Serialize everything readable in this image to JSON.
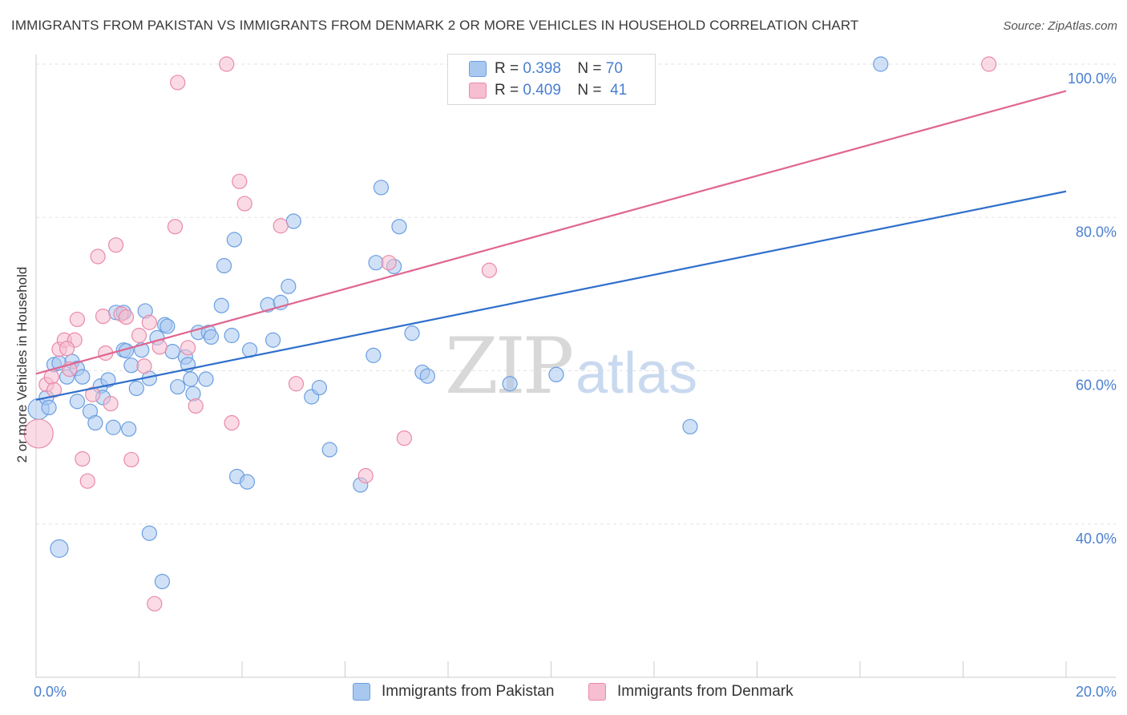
{
  "title": "IMMIGRANTS FROM PAKISTAN VS IMMIGRANTS FROM DENMARK 2 OR MORE VEHICLES IN HOUSEHOLD CORRELATION CHART",
  "source": "Source: ZipAtlas.com",
  "watermark": {
    "zip": "ZIP",
    "atlas": "atlas"
  },
  "colors": {
    "pakistan_fill": "#a9c8f0",
    "pakistan_stroke": "#6b9ee0",
    "pakistan_line": "#2f6fcc",
    "denmark_fill": "#f6bed0",
    "denmark_stroke": "#e98aa9",
    "denmark_line": "#e06690",
    "tick_text": "#4a7fd0",
    "grid": "#e3e3e3"
  },
  "legend": {
    "rows": [
      {
        "r_label": "R =",
        "r_value": "0.398",
        "n_label": "N =",
        "n_value": "70"
      },
      {
        "r_label": "R =",
        "r_value": "0.409",
        "n_label": "N =",
        "n_value": "41"
      }
    ]
  },
  "bottom_legend": [
    "Immigrants from Pakistan",
    "Immigrants from Denmark"
  ],
  "chart_data": {
    "type": "scatter",
    "title": "IMMIGRANTS FROM PAKISTAN VS IMMIGRANTS FROM DENMARK 2 OR MORE VEHICLES IN HOUSEHOLD CORRELATION CHART",
    "xlabel": "",
    "ylabel": "2 or more Vehicles in Household",
    "xlim": [
      0,
      20
    ],
    "ylim": [
      20,
      102
    ],
    "x_tick_labels": [
      {
        "value": 0,
        "label": "0.0%"
      },
      {
        "value": 20,
        "label": "20.0%"
      }
    ],
    "y_tick_labels": [
      {
        "value": 40,
        "label": "40.0%"
      },
      {
        "value": 60,
        "label": "60.0%"
      },
      {
        "value": 80,
        "label": "80.0%"
      },
      {
        "value": 100,
        "label": "100.0%"
      }
    ],
    "grid": true,
    "legend_position": "top-center",
    "series": [
      {
        "name": "Immigrants from Pakistan",
        "r": 0.398,
        "n": 70,
        "trend": {
          "x0": 0,
          "y0": 56.2,
          "x1": 20,
          "y1": 83.4
        },
        "points": [
          [
            0.05,
            55.0
          ],
          [
            0.2,
            56.5
          ],
          [
            0.25,
            55.2
          ],
          [
            0.35,
            60.8
          ],
          [
            0.45,
            61.0
          ],
          [
            0.6,
            59.2
          ],
          [
            0.7,
            61.2
          ],
          [
            0.8,
            60.3
          ],
          [
            0.8,
            56.0
          ],
          [
            0.9,
            59.2
          ],
          [
            1.05,
            54.7
          ],
          [
            1.15,
            53.2
          ],
          [
            1.25,
            58.0
          ],
          [
            1.3,
            56.5
          ],
          [
            1.4,
            58.8
          ],
          [
            1.5,
            52.6
          ],
          [
            1.55,
            67.6
          ],
          [
            1.7,
            67.6
          ],
          [
            1.7,
            62.7
          ],
          [
            1.75,
            62.6
          ],
          [
            1.8,
            52.4
          ],
          [
            1.85,
            60.7
          ],
          [
            1.95,
            57.7
          ],
          [
            2.05,
            62.7
          ],
          [
            2.12,
            67.8
          ],
          [
            2.2,
            59.0
          ],
          [
            2.35,
            64.3
          ],
          [
            2.5,
            66.0
          ],
          [
            2.55,
            65.8
          ],
          [
            2.65,
            62.5
          ],
          [
            2.75,
            57.9
          ],
          [
            2.9,
            61.8
          ],
          [
            2.95,
            60.8
          ],
          [
            3.0,
            58.9
          ],
          [
            3.05,
            57.0
          ],
          [
            3.15,
            65.0
          ],
          [
            3.3,
            58.9
          ],
          [
            3.35,
            65.0
          ],
          [
            3.4,
            64.4
          ],
          [
            3.6,
            68.5
          ],
          [
            3.65,
            73.7
          ],
          [
            3.8,
            64.6
          ],
          [
            3.85,
            77.1
          ],
          [
            3.9,
            46.2
          ],
          [
            4.1,
            45.5
          ],
          [
            4.15,
            62.7
          ],
          [
            4.5,
            68.6
          ],
          [
            4.6,
            64.0
          ],
          [
            4.75,
            68.9
          ],
          [
            4.9,
            71.0
          ],
          [
            5.0,
            79.5
          ],
          [
            5.35,
            56.6
          ],
          [
            5.5,
            57.8
          ],
          [
            5.7,
            49.7
          ],
          [
            6.3,
            45.1
          ],
          [
            6.55,
            62.0
          ],
          [
            6.6,
            74.1
          ],
          [
            6.7,
            83.9
          ],
          [
            6.95,
            73.6
          ],
          [
            7.05,
            78.8
          ],
          [
            7.3,
            64.9
          ],
          [
            7.5,
            59.8
          ],
          [
            7.6,
            59.3
          ],
          [
            9.2,
            58.3
          ],
          [
            10.1,
            59.5
          ],
          [
            12.7,
            52.7
          ],
          [
            16.4,
            100.0
          ],
          [
            0.45,
            36.8
          ],
          [
            2.2,
            38.8
          ],
          [
            2.45,
            32.5
          ]
        ]
      },
      {
        "name": "Immigrants from Denmark",
        "r": 0.409,
        "n": 41,
        "trend": {
          "x0": 0,
          "y0": 59.6,
          "x1": 20,
          "y1": 96.5
        },
        "points": [
          [
            0.05,
            51.8
          ],
          [
            0.2,
            58.2
          ],
          [
            0.3,
            59.2
          ],
          [
            0.35,
            57.5
          ],
          [
            0.45,
            62.8
          ],
          [
            0.55,
            64.0
          ],
          [
            0.65,
            60.2
          ],
          [
            0.75,
            64.0
          ],
          [
            0.8,
            66.7
          ],
          [
            0.9,
            48.5
          ],
          [
            1.0,
            45.6
          ],
          [
            1.1,
            56.9
          ],
          [
            1.2,
            74.9
          ],
          [
            1.3,
            67.1
          ],
          [
            1.35,
            62.3
          ],
          [
            1.45,
            55.7
          ],
          [
            1.55,
            76.4
          ],
          [
            1.65,
            67.4
          ],
          [
            1.75,
            67.0
          ],
          [
            1.85,
            48.4
          ],
          [
            2.0,
            64.6
          ],
          [
            2.1,
            60.6
          ],
          [
            2.2,
            66.3
          ],
          [
            2.4,
            63.1
          ],
          [
            2.7,
            78.8
          ],
          [
            2.75,
            97.6
          ],
          [
            2.95,
            63.0
          ],
          [
            3.1,
            55.4
          ],
          [
            3.7,
            100.0
          ],
          [
            3.8,
            53.2
          ],
          [
            3.95,
            84.7
          ],
          [
            4.05,
            81.8
          ],
          [
            4.75,
            78.9
          ],
          [
            5.05,
            58.3
          ],
          [
            6.4,
            46.3
          ],
          [
            6.85,
            74.1
          ],
          [
            7.15,
            51.2
          ],
          [
            8.8,
            73.1
          ],
          [
            18.5,
            100.0
          ],
          [
            2.3,
            29.6
          ],
          [
            0.6,
            62.9
          ]
        ]
      }
    ]
  }
}
